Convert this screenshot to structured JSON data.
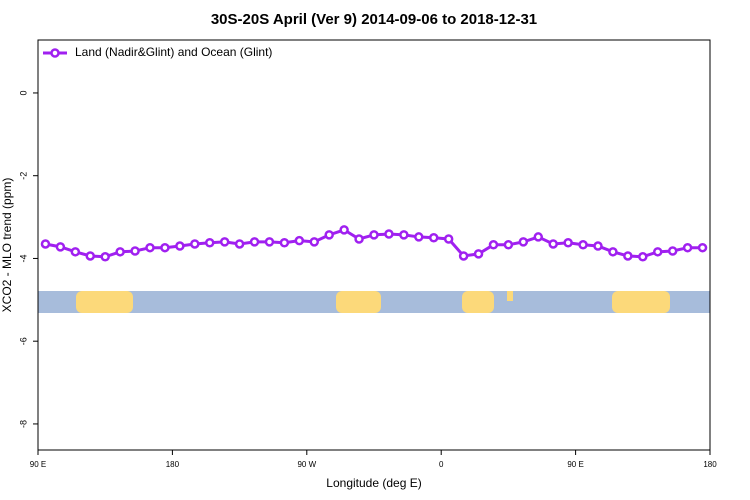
{
  "chart_data": {
    "type": "line",
    "title": "30S-20S April (Ver 9)   2014-09-06 to 2018-12-31",
    "xlabel": "Longitude (deg E)",
    "ylabel": "XCO2 - MLO trend (ppm)",
    "x": [
      95,
      105,
      115,
      125,
      135,
      145,
      155,
      165,
      175,
      185,
      195,
      205,
      215,
      225,
      235,
      245,
      255,
      265,
      275,
      285,
      295,
      305,
      315,
      325,
      335,
      345,
      355,
      365,
      375,
      385,
      395,
      405,
      415,
      425,
      435,
      445,
      455,
      465,
      475,
      485,
      495,
      505,
      515,
      525,
      535
    ],
    "series": [
      {
        "name": "Land (Nadir&Glint) and Ocean (Glint)",
        "color": "#a020f0",
        "values": [
          -3.65,
          -3.72,
          -3.84,
          -3.94,
          -3.96,
          -3.84,
          -3.82,
          -3.74,
          -3.74,
          -3.7,
          -3.65,
          -3.62,
          -3.6,
          -3.65,
          -3.6,
          -3.6,
          -3.62,
          -3.57,
          -3.6,
          -3.43,
          -3.31,
          -3.53,
          -3.43,
          -3.41,
          -3.43,
          -3.48,
          -3.5,
          -3.53,
          -3.94,
          -3.89,
          -3.67,
          -3.67,
          -3.6,
          -3.48,
          -3.65,
          -3.62,
          -3.67,
          -3.7,
          -3.84,
          -3.94,
          -3.96,
          -3.84,
          -3.82,
          -3.74,
          -3.74
        ]
      }
    ],
    "xlim": [
      90,
      540
    ],
    "xticks": [
      {
        "value": 90,
        "label": "90 E"
      },
      180,
      {
        "value": 270,
        "label": "90 W"
      },
      {
        "value": 360,
        "label": "0"
      },
      {
        "value": 450,
        "label": "90 E"
      },
      {
        "value": 540,
        "label": "180"
      }
    ],
    "ylim": [
      -8.63,
      1.28
    ],
    "yticks": [
      0,
      -2,
      -4,
      -6,
      -8
    ],
    "legend": "top-left"
  }
}
